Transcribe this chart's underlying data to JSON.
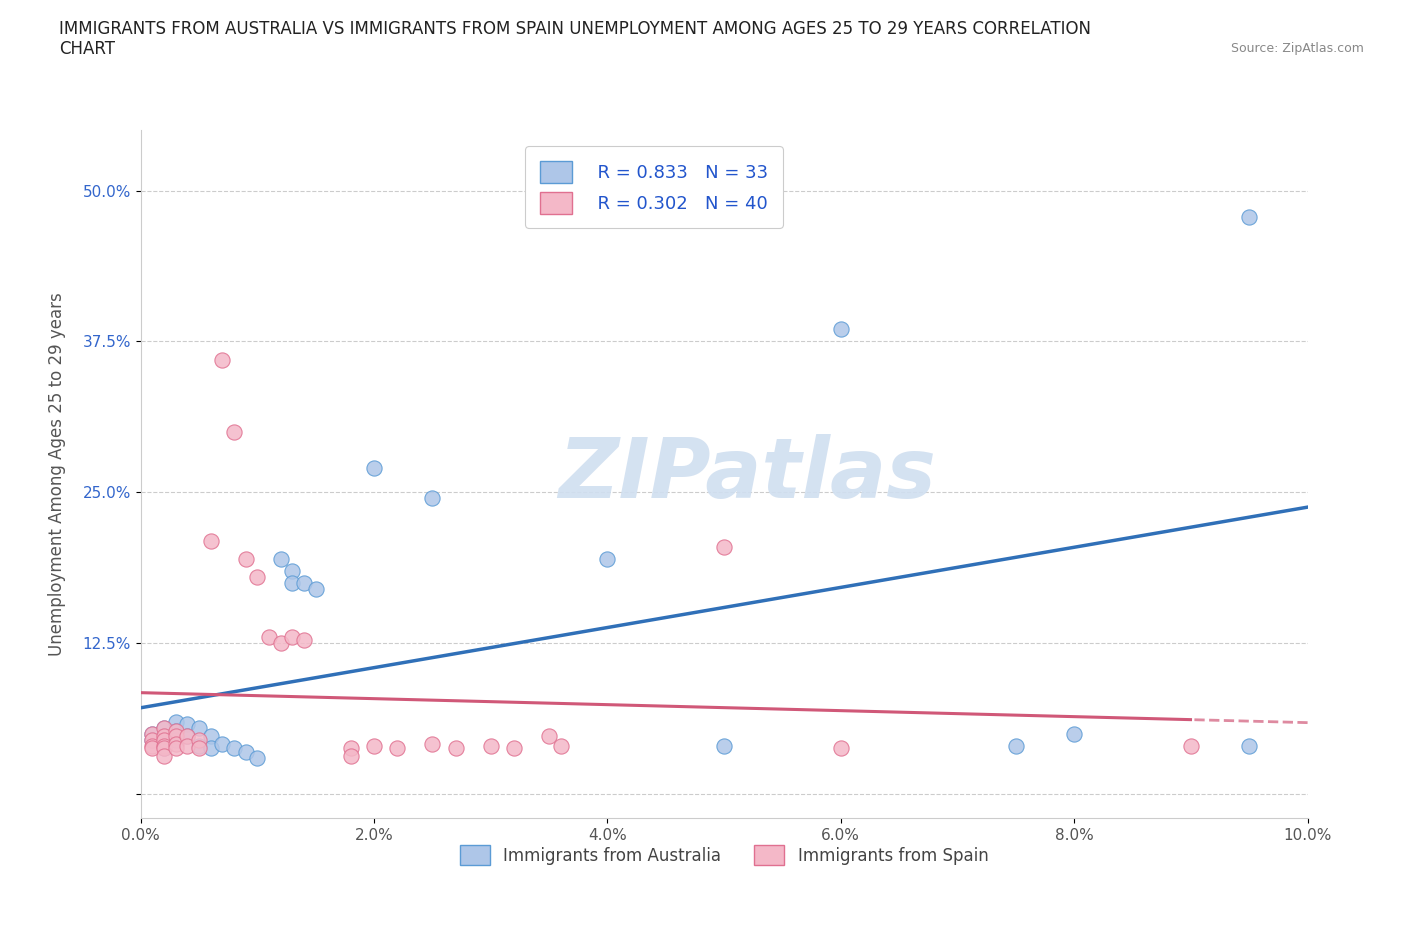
{
  "title": "IMMIGRANTS FROM AUSTRALIA VS IMMIGRANTS FROM SPAIN UNEMPLOYMENT AMONG AGES 25 TO 29 YEARS CORRELATION\nCHART",
  "source": "Source: ZipAtlas.com",
  "ylabel": "Unemployment Among Ages 25 to 29 years",
  "xlim": [
    0.0,
    0.1
  ],
  "ylim": [
    -0.02,
    0.55
  ],
  "yticks": [
    0.0,
    0.125,
    0.25,
    0.375,
    0.5
  ],
  "ytick_labels": [
    "",
    "12.5%",
    "25.0%",
    "37.5%",
    "50.0%"
  ],
  "xticks": [
    0.0,
    0.02,
    0.04,
    0.06,
    0.08,
    0.1
  ],
  "xtick_labels": [
    "0.0%",
    "2.0%",
    "4.0%",
    "6.0%",
    "8.0%",
    "10.0%"
  ],
  "australia_color": "#aec6e8",
  "australia_edge": "#5b9bd5",
  "spain_color": "#f4b8c8",
  "spain_edge": "#e07090",
  "australia_line_color": "#3070b8",
  "spain_line_color": "#d05878",
  "spain_line_dash_color": "#d08898",
  "R_australia": 0.833,
  "N_australia": 33,
  "R_spain": 0.302,
  "N_spain": 40,
  "watermark": "ZIPatlas",
  "watermark_color": "#d0dff0",
  "legend_label_australia": "Immigrants from Australia",
  "legend_label_spain": "Immigrants from Spain",
  "australia_scatter": [
    [
      0.001,
      0.05
    ],
    [
      0.001,
      0.045
    ],
    [
      0.002,
      0.055
    ],
    [
      0.002,
      0.048
    ],
    [
      0.002,
      0.042
    ],
    [
      0.002,
      0.038
    ],
    [
      0.003,
      0.06
    ],
    [
      0.003,
      0.052
    ],
    [
      0.003,
      0.045
    ],
    [
      0.004,
      0.058
    ],
    [
      0.004,
      0.048
    ],
    [
      0.005,
      0.055
    ],
    [
      0.005,
      0.04
    ],
    [
      0.006,
      0.048
    ],
    [
      0.006,
      0.038
    ],
    [
      0.007,
      0.042
    ],
    [
      0.008,
      0.038
    ],
    [
      0.009,
      0.035
    ],
    [
      0.01,
      0.03
    ],
    [
      0.012,
      0.195
    ],
    [
      0.013,
      0.185
    ],
    [
      0.013,
      0.175
    ],
    [
      0.014,
      0.175
    ],
    [
      0.015,
      0.17
    ],
    [
      0.02,
      0.27
    ],
    [
      0.025,
      0.245
    ],
    [
      0.04,
      0.195
    ],
    [
      0.05,
      0.04
    ],
    [
      0.06,
      0.385
    ],
    [
      0.075,
      0.04
    ],
    [
      0.08,
      0.05
    ],
    [
      0.095,
      0.478
    ],
    [
      0.095,
      0.04
    ]
  ],
  "spain_scatter": [
    [
      0.001,
      0.05
    ],
    [
      0.001,
      0.045
    ],
    [
      0.001,
      0.04
    ],
    [
      0.001,
      0.038
    ],
    [
      0.002,
      0.055
    ],
    [
      0.002,
      0.048
    ],
    [
      0.002,
      0.045
    ],
    [
      0.002,
      0.04
    ],
    [
      0.002,
      0.038
    ],
    [
      0.002,
      0.032
    ],
    [
      0.003,
      0.052
    ],
    [
      0.003,
      0.048
    ],
    [
      0.003,
      0.042
    ],
    [
      0.003,
      0.038
    ],
    [
      0.004,
      0.048
    ],
    [
      0.004,
      0.04
    ],
    [
      0.005,
      0.045
    ],
    [
      0.005,
      0.038
    ],
    [
      0.006,
      0.21
    ],
    [
      0.007,
      0.36
    ],
    [
      0.008,
      0.3
    ],
    [
      0.009,
      0.195
    ],
    [
      0.01,
      0.18
    ],
    [
      0.011,
      0.13
    ],
    [
      0.012,
      0.125
    ],
    [
      0.013,
      0.13
    ],
    [
      0.014,
      0.128
    ],
    [
      0.018,
      0.038
    ],
    [
      0.018,
      0.032
    ],
    [
      0.02,
      0.04
    ],
    [
      0.022,
      0.038
    ],
    [
      0.025,
      0.042
    ],
    [
      0.027,
      0.038
    ],
    [
      0.03,
      0.04
    ],
    [
      0.032,
      0.038
    ],
    [
      0.035,
      0.048
    ],
    [
      0.036,
      0.04
    ],
    [
      0.05,
      0.205
    ],
    [
      0.06,
      0.038
    ],
    [
      0.09,
      0.04
    ]
  ]
}
